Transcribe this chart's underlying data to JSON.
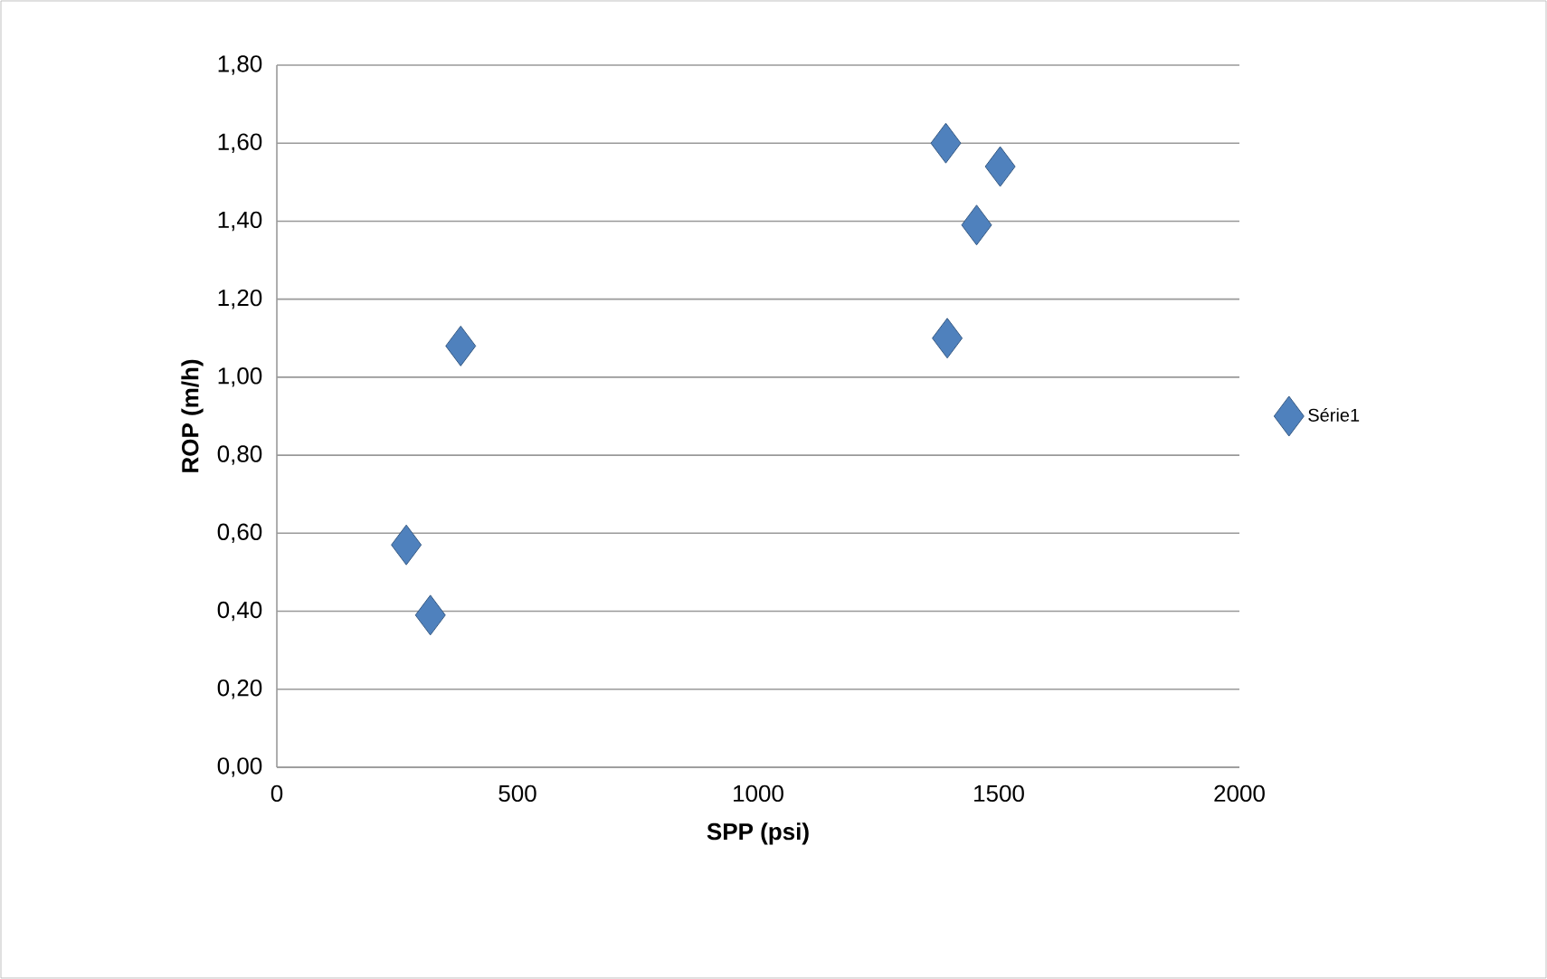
{
  "chart_data": {
    "type": "scatter",
    "xlabel": "SPP (psi)",
    "ylabel": "ROP (m/h)",
    "series": [
      {
        "name": "Série1",
        "color": "#4f81bd",
        "x": [
          269,
          319,
          382,
          1390,
          1503,
          1454,
          1393
        ],
        "values": [
          0.57,
          0.39,
          1.08,
          1.6,
          1.54,
          1.39,
          1.1
        ]
      }
    ],
    "xlim": [
      0,
      2000
    ],
    "xticks": [
      0,
      500,
      1000,
      1500,
      2000
    ],
    "ylim": [
      0,
      1.8
    ],
    "yticks": [
      {
        "value": 0,
        "label": "0,00"
      },
      {
        "value": 0.2,
        "label": "0,20"
      },
      {
        "value": 0.4,
        "label": "0,40"
      },
      {
        "value": 0.6,
        "label": "0,60"
      },
      {
        "value": 0.8,
        "label": "0,80"
      },
      {
        "value": 1.0,
        "label": "1,00"
      },
      {
        "value": 1.2,
        "label": "1,20"
      },
      {
        "value": 1.4,
        "label": "1,40"
      },
      {
        "value": 1.6,
        "label": "1,60"
      },
      {
        "value": 1.8,
        "label": "1,80"
      }
    ],
    "grid": "y",
    "legend": "right",
    "marker": "diamond"
  }
}
